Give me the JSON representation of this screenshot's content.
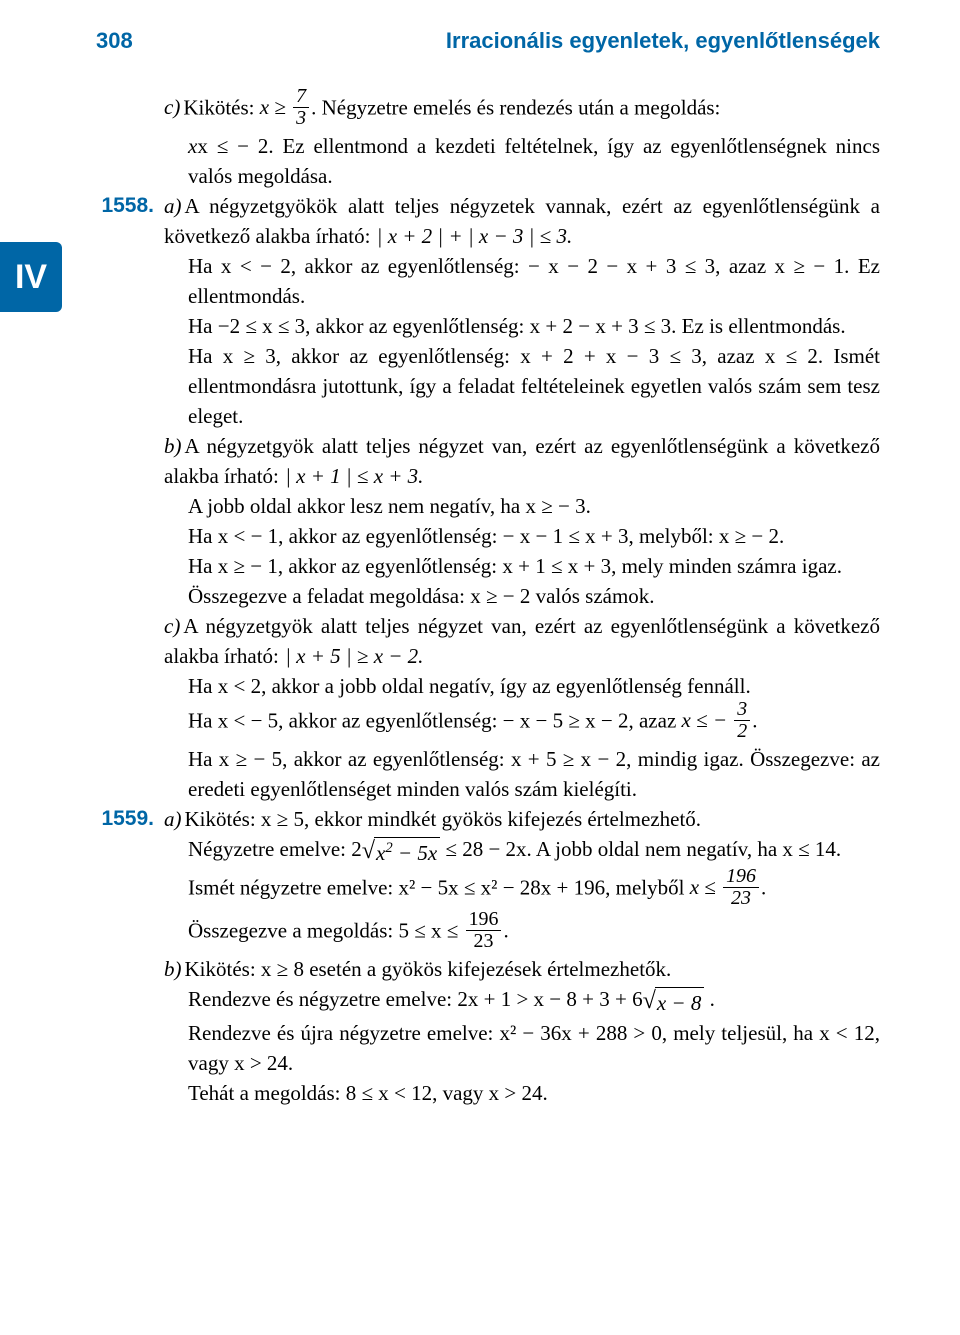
{
  "header": {
    "page_number": "308",
    "chapter_title": "Irracionális egyenletek, egyenlőtlenségek"
  },
  "side_tab": "IV",
  "p1557c": {
    "label": "c)",
    "t1a": "Kikötés: ",
    "f1_num": "7",
    "f1_den": "3",
    "t1b": ". Négyzetre emelés és rendezés után a megoldás:",
    "t2": "x ≤ − 2. Ez ellentmond a kezdeti feltételnek, így az egyenlőtlenségnek nincs valós megoldása."
  },
  "p1558": {
    "num": "1558.",
    "a_label": "a)",
    "a_t1": "A négyzetgyökök alatt teljes négyzetek vannak, ezért az egyenlőtlenségünk a következő alakba írható: ",
    "a_abs": "| x + 2 | + | x − 3 | ≤ 3.",
    "a_t2": "Ha  x < − 2,  akkor  az  egyenlőtlenség:  − x − 2 − x + 3 ≤ 3,  azaz x ≥ − 1. Ez ellentmondás.",
    "a_t3": "Ha −2 ≤ x ≤ 3, akkor az egyenlőtlenség: x + 2 − x + 3 ≤ 3. Ez is ellentmondás.",
    "a_t4": "Ha x ≥ 3, akkor az egyenlőtlenség: x + 2 + x − 3 ≤ 3, azaz x ≤ 2. Ismét ellentmondásra jutottunk, így a feladat feltételeinek egyetlen valós szám sem tesz eleget.",
    "b_label": "b)",
    "b_t1": "A négyzetgyök alatt teljes négyzet van, ezért az egyenlőtlenségünk a következő alakba írható: ",
    "b_abs": "| x + 1 | ≤ x + 3.",
    "b_t2": "A jobb oldal akkor lesz nem negatív, ha x ≥ − 3.",
    "b_t3": "Ha  x < − 1,  akkor  az  egyenlőtlenség:  − x − 1 ≤ x + 3,  melyből: x ≥ − 2.",
    "b_t4": "Ha x ≥ − 1, akkor az egyenlőtlenség: x + 1 ≤ x + 3, mely minden számra igaz.",
    "b_t5": "Összegezve a feladat megoldása: x ≥ − 2 valós számok.",
    "c_label": "c)",
    "c_t1": "A négyzetgyök alatt teljes négyzet van, ezért az egyenlőtlenségünk a következő alakba írható: ",
    "c_abs": "| x + 5 | ≥ x − 2.",
    "c_t2": "Ha x < 2, akkor a jobb oldal negatív, így az egyenlőtlenség fennáll.",
    "c_t3a": "Ha x < − 5, akkor az egyenlőtlenség: − x − 5 ≥ x − 2, azaz ",
    "c_f_num": "3",
    "c_f_den": "2",
    "c_t4": "Ha x ≥ − 5, akkor az egyenlőtlenség: x + 5 ≥ x − 2, mindig igaz. Összegezve: az eredeti egyenlőtlenséget minden valós szám kielégíti."
  },
  "p1559": {
    "num": "1559.",
    "a_label": "a)",
    "a_t1": "Kikötés: x ≥ 5, ekkor mindkét gyökös kifejezés értelmezhető.",
    "a_t2a": "Négyzetre emelve: 2",
    "a_sq1": "x² − 5x",
    "a_t2b": " ≤ 28 − 2x. A jobb oldal nem negatív, ha x ≤ 14.",
    "a_t3a": "Ismét négyzetre emelve: x² − 5x ≤ x² − 28x + 196, melyből ",
    "a_f1_num": "196",
    "a_f1_den": "23",
    "a_t4a": "Összegezve a megoldás: 5 ≤ x ≤ ",
    "a_f2_num": "196",
    "a_f2_den": "23",
    "b_label": "b)",
    "b_t1": "Kikötés: x ≥ 8 esetén a gyökös kifejezések értelmezhetők.",
    "b_t2a": "Rendezve és négyzetre emelve: 2x + 1 > x − 8 + 3 + 6",
    "b_sq1": "x − 8",
    "b_t2b": " .",
    "b_t3": "Rendezve és újra négyzetre emelve: x² − 36x + 288 > 0, mely teljesül, ha x < 12, vagy x > 24.",
    "b_t4": "Tehát a megoldás: 8 ≤ x < 12, vagy x > 24."
  }
}
